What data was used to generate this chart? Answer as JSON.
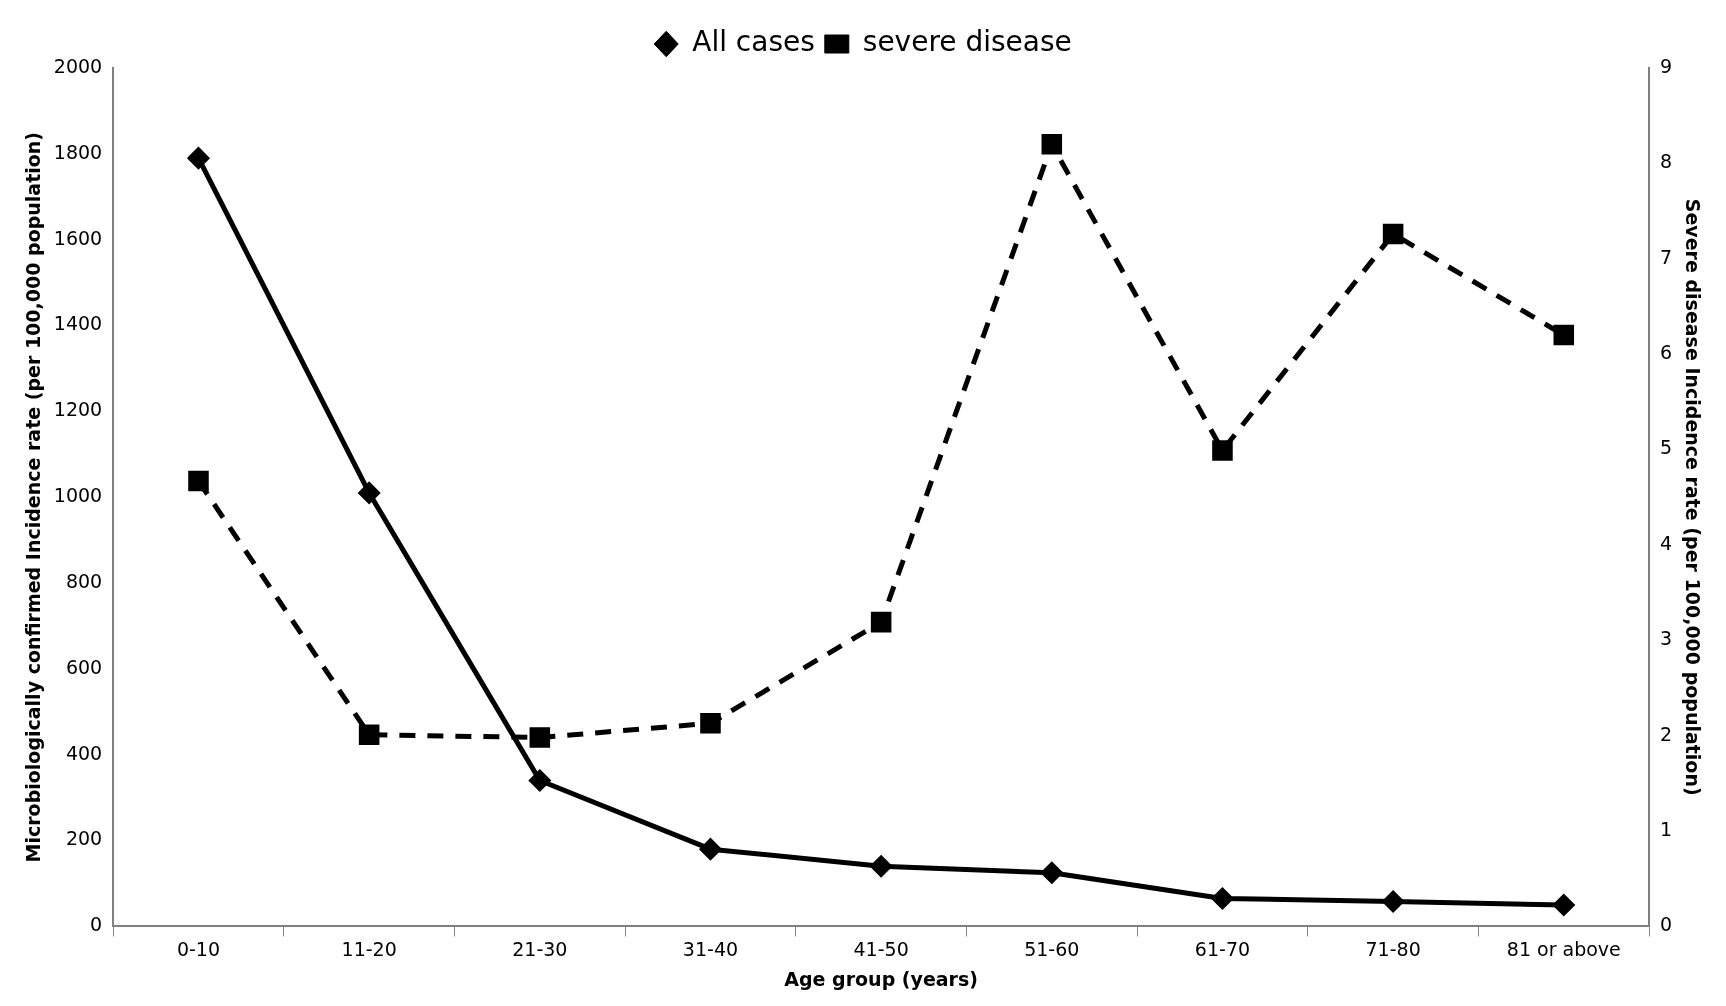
{
  "chart_data": {
    "type": "line",
    "xlabel": "Age group (years)",
    "ylabel": "Microbiologically confirmed Incidence rate (per 100,000 population)",
    "y2label": "Severe disease Incidence rate (per 100,000 population)",
    "categories": [
      "0-10",
      "11-20",
      "21-30",
      "31-40",
      "41-50",
      "51-60",
      "61-70",
      "71-80",
      "81 or above"
    ],
    "series": [
      {
        "name": "All cases",
        "color": "#000000",
        "marker": "diamond",
        "line_style": "solid",
        "values": [
          1790,
          1010,
          340,
          180,
          140,
          125,
          65,
          58,
          50
        ]
      },
      {
        "name": "severe disease",
        "color": "#000000",
        "marker": "square",
        "line_style": "dashed",
        "axis": "y2",
        "values": [
          4.67,
          2.01,
          1.98,
          2.13,
          3.19,
          8.2,
          4.99,
          7.26,
          6.2
        ]
      }
    ],
    "ylim": [
      0,
      2000
    ],
    "yticks": [
      0,
      200,
      400,
      600,
      800,
      1000,
      1200,
      1400,
      1600,
      1800,
      2000
    ],
    "y2lim": [
      0,
      9
    ],
    "y2ticks": [
      0,
      1,
      2,
      3,
      4,
      5,
      6,
      7,
      8,
      9
    ],
    "grid": false,
    "legend": "top"
  }
}
